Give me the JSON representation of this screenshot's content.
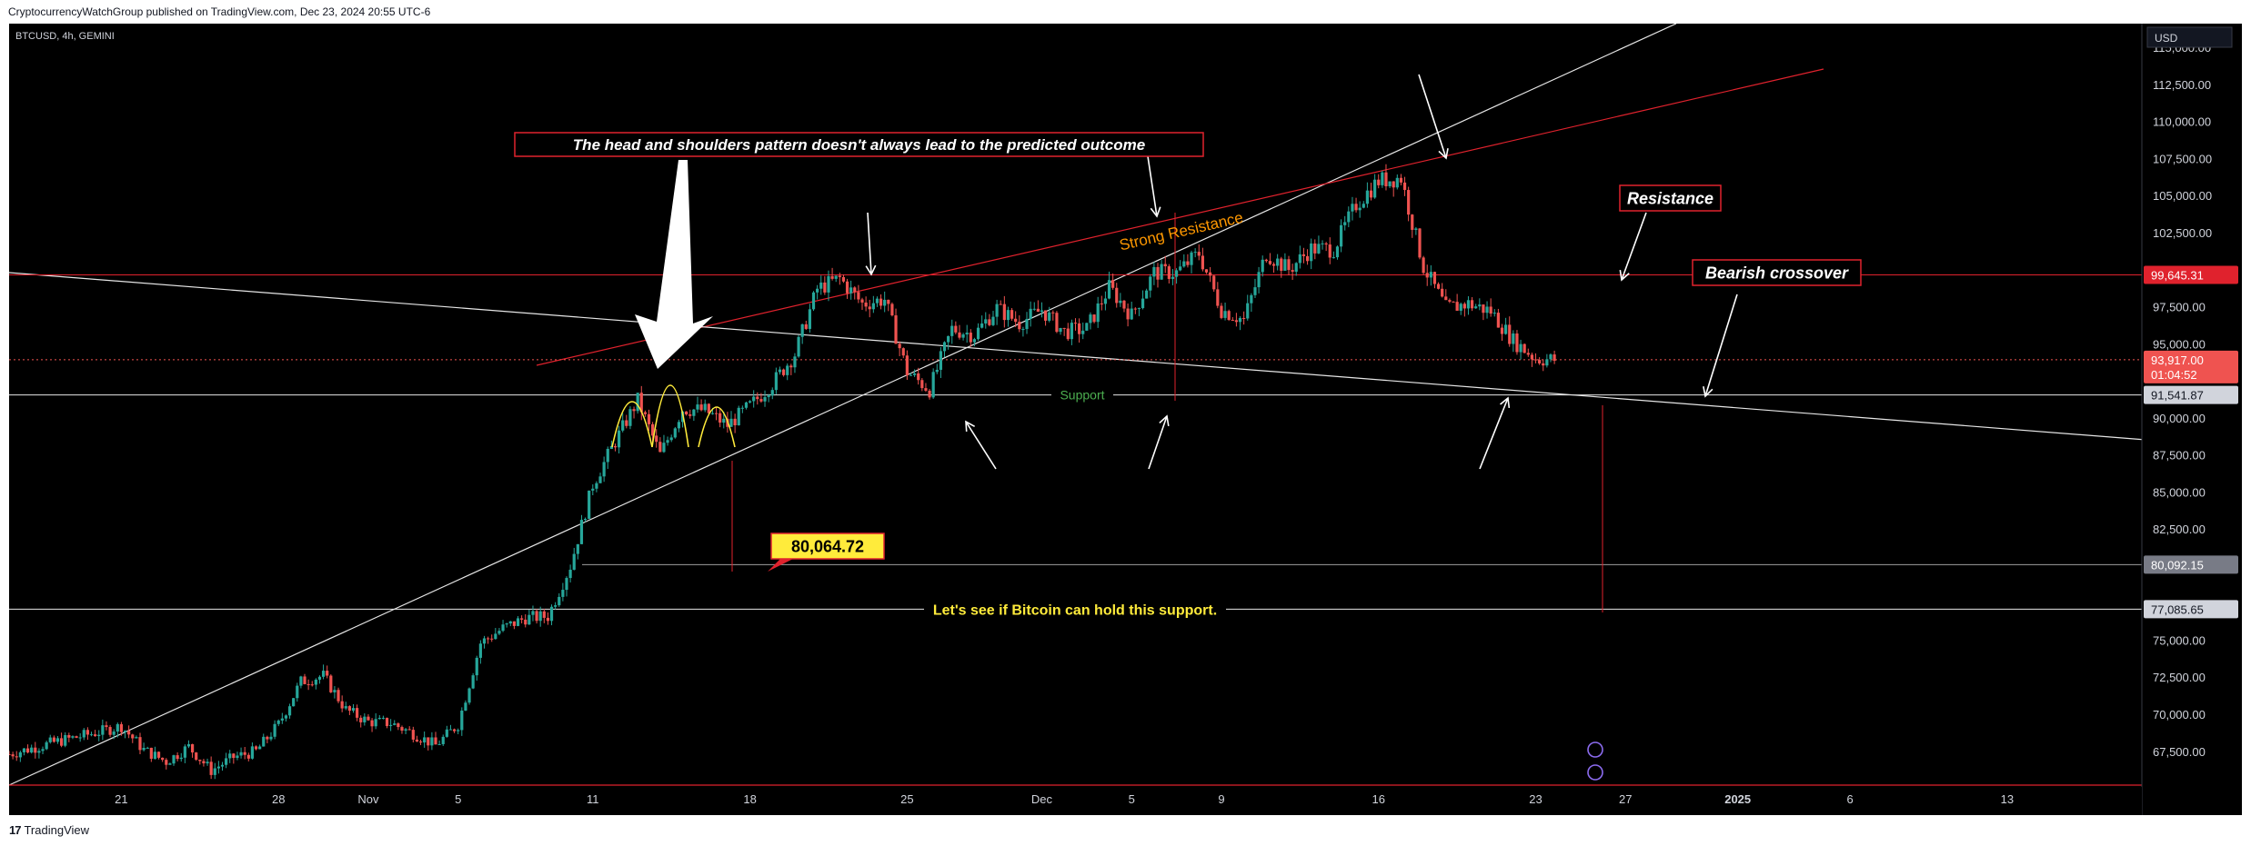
{
  "header": {
    "publish_text": "CryptocurrencyWatchGroup published on TradingView.com, Dec 23, 2024 20:55 UTC-6"
  },
  "footer": {
    "logo_mark": "17",
    "brand": "TradingView"
  },
  "symbol": {
    "label": "BTCUSD, 4h, GEMINI"
  },
  "currency_badge": "USD",
  "colors": {
    "background": "#000000",
    "up": "#26a69a",
    "down": "#ef5350",
    "resistance": "#e0222d",
    "support": "#ffffff",
    "note": "#ffeb3b",
    "support_text": "#4caf50",
    "strong_res": "#ff9800"
  },
  "chart_data": {
    "type": "candlestick",
    "interval": "4h",
    "y_range": [
      65400,
      116600
    ],
    "x_range": [
      "2024-10-16",
      "2025-01-19"
    ],
    "y_ticks": [
      67500,
      70000,
      72500,
      75000,
      77500,
      80000,
      82500,
      85000,
      87500,
      90000,
      92500,
      95000,
      97500,
      100000,
      102500,
      105000,
      107500,
      110000,
      112500,
      115000
    ],
    "y_tick_labels": [
      "67,500.00",
      "70,000.00",
      "72,500.00",
      "75,000.00",
      "",
      "",
      "82,500.00",
      "85,000.00",
      "87,500.00",
      "90,000.00",
      "",
      "95,000.00",
      "97,500.00",
      "",
      "102,500.00",
      "105,000.00",
      "107,500.00",
      "110,000.00",
      "112,500.00",
      "115,000.00"
    ],
    "x_ticks": [
      {
        "date": "2024-10-21",
        "label": "21"
      },
      {
        "date": "2024-10-28",
        "label": "28"
      },
      {
        "date": "2024-11-01",
        "label": "Nov"
      },
      {
        "date": "2024-11-05",
        "label": "5"
      },
      {
        "date": "2024-11-11",
        "label": "11"
      },
      {
        "date": "2024-11-18",
        "label": "18"
      },
      {
        "date": "2024-11-25",
        "label": "25"
      },
      {
        "date": "2024-12-01",
        "label": "Dec"
      },
      {
        "date": "2024-12-05",
        "label": "5"
      },
      {
        "date": "2024-12-09",
        "label": "9"
      },
      {
        "date": "2024-12-16",
        "label": "16"
      },
      {
        "date": "2024-12-23",
        "label": "23"
      },
      {
        "date": "2024-12-27",
        "label": "27"
      },
      {
        "date": "2025-01-01",
        "label": "2025"
      },
      {
        "date": "2025-01-06",
        "label": "6"
      },
      {
        "date": "2025-01-13",
        "label": "13"
      }
    ],
    "price_path": [
      [
        "2024-10-16",
        67300
      ],
      [
        "2024-10-18",
        68100
      ],
      [
        "2024-10-20",
        68800
      ],
      [
        "2024-10-21",
        69200
      ],
      [
        "2024-10-22",
        67600
      ],
      [
        "2024-10-23",
        66800
      ],
      [
        "2024-10-24",
        67800
      ],
      [
        "2024-10-25",
        66200
      ],
      [
        "2024-10-26",
        67100
      ],
      [
        "2024-10-27",
        67500
      ],
      [
        "2024-10-28",
        69300
      ],
      [
        "2024-10-29",
        72200
      ],
      [
        "2024-10-30",
        72600
      ],
      [
        "2024-10-31",
        70300
      ],
      [
        "2024-11-01",
        69500
      ],
      [
        "2024-11-02",
        69400
      ],
      [
        "2024-11-03",
        68700
      ],
      [
        "2024-11-04",
        67900
      ],
      [
        "2024-11-05",
        69300
      ],
      [
        "2024-11-06",
        74800
      ],
      [
        "2024-11-07",
        75800
      ],
      [
        "2024-11-08",
        76500
      ],
      [
        "2024-11-09",
        76600
      ],
      [
        "2024-11-10",
        80000
      ],
      [
        "2024-11-11",
        85500
      ],
      [
        "2024-11-12",
        88400
      ],
      [
        "2024-11-13",
        91200
      ],
      [
        "2024-11-14",
        87500
      ],
      [
        "2024-11-15",
        90600
      ],
      [
        "2024-11-16",
        90500
      ],
      [
        "2024-11-17",
        89500
      ],
      [
        "2024-11-18",
        90800
      ],
      [
        "2024-11-19",
        92300
      ],
      [
        "2024-11-20",
        94300
      ],
      [
        "2024-11-21",
        98700
      ],
      [
        "2024-11-22",
        99400
      ],
      [
        "2024-11-23",
        97700
      ],
      [
        "2024-11-24",
        98000
      ],
      [
        "2024-11-25",
        93100
      ],
      [
        "2024-11-26",
        91900
      ],
      [
        "2024-11-27",
        96000
      ],
      [
        "2024-11-28",
        95600
      ],
      [
        "2024-11-29",
        97400
      ],
      [
        "2024-11-30",
        96400
      ],
      [
        "2024-12-01",
        97300
      ],
      [
        "2024-12-02",
        95800
      ],
      [
        "2024-12-03",
        96000
      ],
      [
        "2024-12-04",
        98800
      ],
      [
        "2024-12-05",
        96900
      ],
      [
        "2024-12-06",
        99800
      ],
      [
        "2024-12-07",
        99800
      ],
      [
        "2024-12-08",
        101100
      ],
      [
        "2024-12-09",
        97300
      ],
      [
        "2024-12-10",
        96600
      ],
      [
        "2024-12-11",
        101100
      ],
      [
        "2024-12-12",
        100000
      ],
      [
        "2024-12-13",
        101400
      ],
      [
        "2024-12-14",
        101400
      ],
      [
        "2024-12-15",
        104400
      ],
      [
        "2024-12-16",
        106000
      ],
      [
        "2024-12-17",
        106200
      ],
      [
        "2024-12-18",
        100200
      ],
      [
        "2024-12-19",
        97400
      ],
      [
        "2024-12-20",
        97700
      ],
      [
        "2024-12-21",
        97200
      ],
      [
        "2024-12-22",
        95200
      ],
      [
        "2024-12-23",
        94000
      ],
      [
        "2024-12-23T20:00",
        93917
      ]
    ],
    "current_price": 93917.0,
    "countdown": "01:04:52",
    "levels": [
      {
        "price": 99645.31,
        "label": "99,645.31",
        "kind": "resistance"
      },
      {
        "price": 91541.87,
        "label": "91,541.87",
        "kind": "support"
      },
      {
        "price": 80092.15,
        "label": "80,092.15",
        "kind": "level"
      },
      {
        "price": 77085.65,
        "label": "77,085.65",
        "kind": "level"
      }
    ],
    "support_label": "Support",
    "strong_resistance_label": "Strong Resistance",
    "hs_note": "The head and shoulders pattern doesn't always lead to the predicted outcome",
    "resistance_note": "Resistance",
    "crossover_note": "Bearish crossover",
    "price_tag": "80,064.72",
    "hold_note": "Let's see if Bitcoin can hold this support."
  }
}
